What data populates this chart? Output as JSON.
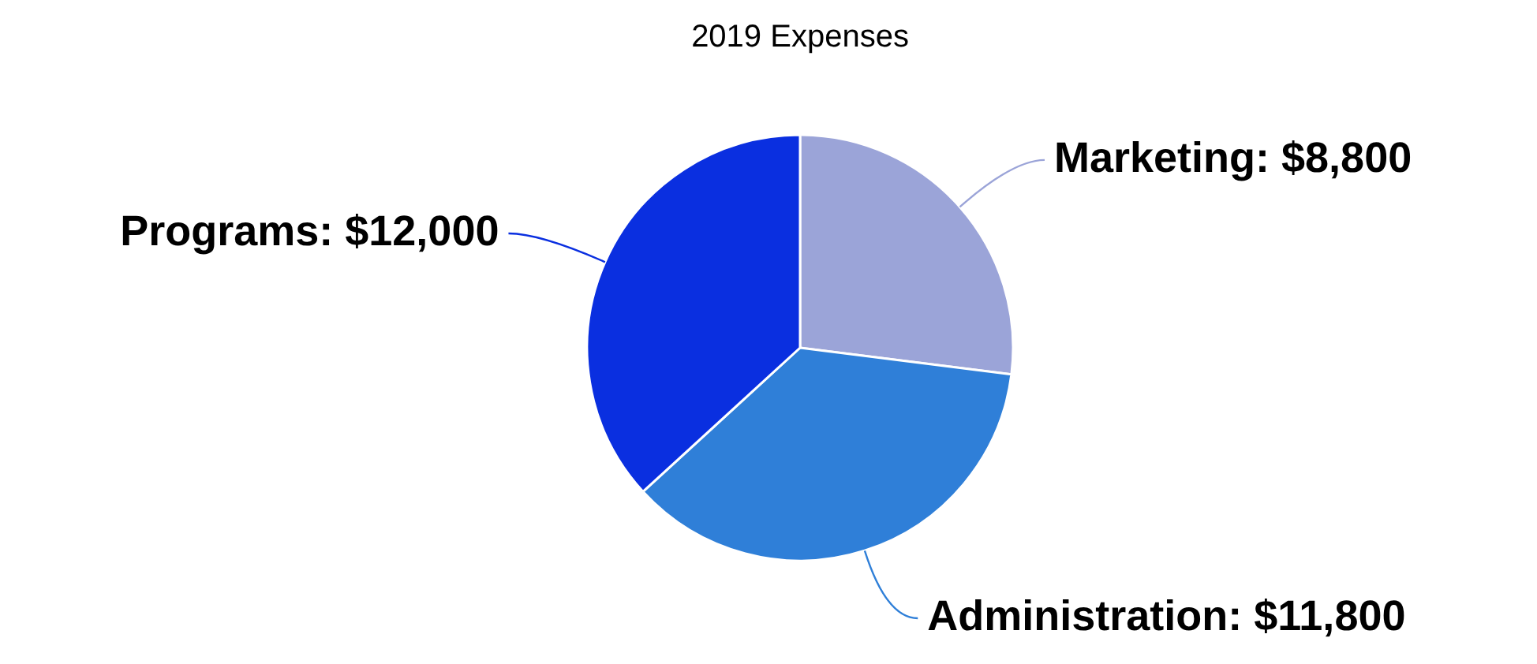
{
  "chart_data": {
    "type": "pie",
    "title": "2019 Expenses",
    "categories": [
      "Marketing",
      "Administration",
      "Programs"
    ],
    "values": [
      8800,
      11800,
      12000
    ],
    "colors": [
      "#9ba4d8",
      "#2f7fd8",
      "#0a2fe0"
    ],
    "value_labels": [
      "$8,800",
      "$11,800",
      "$12,000"
    ],
    "legend": false
  }
}
